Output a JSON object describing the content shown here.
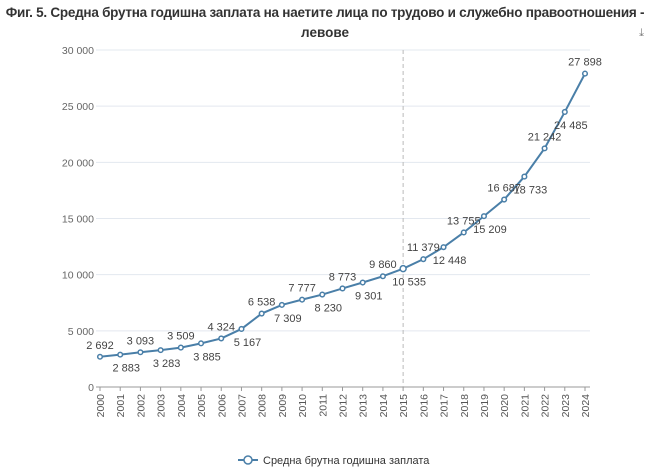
{
  "chart_data": {
    "type": "line",
    "title": "Фиг. 5. Средна брутна годишна заплата на наетите лица по трудово и служебно правоотношения -",
    "subtitle": "левове",
    "x": [
      "2000",
      "2001",
      "2002",
      "2003",
      "2004",
      "2005",
      "2006",
      "2007",
      "2008",
      "2009",
      "2010",
      "2011",
      "2012",
      "2013",
      "2014",
      "2015",
      "2016",
      "2017",
      "2018",
      "2019",
      "2020",
      "2021",
      "2022",
      "2023",
      "2024"
    ],
    "series": [
      {
        "name": "Средна брутна годишна заплата",
        "values": [
          2692,
          2883,
          3093,
          3283,
          3509,
          3885,
          4324,
          5167,
          6538,
          7309,
          7777,
          8230,
          8773,
          9301,
          9860,
          10535,
          11379,
          12448,
          13755,
          15209,
          16687,
          18733,
          21242,
          24485,
          27898
        ]
      }
    ],
    "yticks": [
      "0",
      "5 000",
      "10 000",
      "15 000",
      "20 000",
      "25 000",
      "30 000"
    ],
    "ylim": [
      0,
      30000
    ],
    "grid": true,
    "reference_line_x": "2015",
    "legend": "bottom",
    "color": "#4a7fa8"
  },
  "toolbar": {
    "export_icon": "export-icon"
  }
}
